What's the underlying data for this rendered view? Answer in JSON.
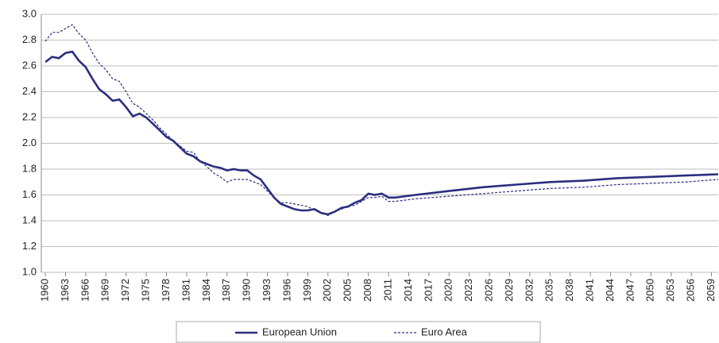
{
  "chart_data": {
    "type": "line",
    "x": [
      1960,
      1961,
      1962,
      1963,
      1964,
      1965,
      1966,
      1967,
      1968,
      1969,
      1970,
      1971,
      1972,
      1973,
      1974,
      1975,
      1976,
      1977,
      1978,
      1979,
      1980,
      1981,
      1982,
      1983,
      1984,
      1985,
      1986,
      1987,
      1988,
      1989,
      1990,
      1991,
      1992,
      1993,
      1994,
      1995,
      1996,
      1997,
      1998,
      1999,
      2000,
      2001,
      2002,
      2003,
      2004,
      2005,
      2006,
      2007,
      2008,
      2009,
      2010,
      2011,
      2012,
      2015,
      2020,
      2025,
      2030,
      2035,
      2040,
      2045,
      2050,
      2055,
      2060
    ],
    "series": [
      {
        "name": "European Union",
        "color": "#2b2e7f",
        "style": "solid",
        "values": [
          2.63,
          2.67,
          2.66,
          2.7,
          2.71,
          2.64,
          2.59,
          2.5,
          2.42,
          2.38,
          2.33,
          2.34,
          2.28,
          2.21,
          2.23,
          2.2,
          2.15,
          2.1,
          2.05,
          2.02,
          1.97,
          1.92,
          1.9,
          1.86,
          1.84,
          1.82,
          1.81,
          1.79,
          1.8,
          1.79,
          1.79,
          1.75,
          1.72,
          1.65,
          1.58,
          1.53,
          1.51,
          1.49,
          1.48,
          1.48,
          1.49,
          1.46,
          1.45,
          1.47,
          1.5,
          1.51,
          1.54,
          1.56,
          1.61,
          1.6,
          1.61,
          1.58,
          1.58,
          1.6,
          1.63,
          1.66,
          1.68,
          1.7,
          1.71,
          1.73,
          1.74,
          1.75,
          1.76
        ]
      },
      {
        "name": "Euro Area",
        "color": "#2b2e7f",
        "style": "dashed",
        "values": [
          2.79,
          2.86,
          2.86,
          2.89,
          2.92,
          2.85,
          2.8,
          2.7,
          2.62,
          2.57,
          2.5,
          2.48,
          2.4,
          2.31,
          2.28,
          2.23,
          2.18,
          2.12,
          2.07,
          2.02,
          1.98,
          1.94,
          1.93,
          1.86,
          1.82,
          1.77,
          1.74,
          1.7,
          1.72,
          1.72,
          1.72,
          1.7,
          1.68,
          1.63,
          1.58,
          1.54,
          1.54,
          1.53,
          1.52,
          1.51,
          1.48,
          1.46,
          1.44,
          1.47,
          1.49,
          1.51,
          1.52,
          1.55,
          1.58,
          1.58,
          1.59,
          1.55,
          1.55,
          1.57,
          1.59,
          1.61,
          1.63,
          1.65,
          1.66,
          1.68,
          1.69,
          1.7,
          1.72
        ]
      }
    ],
    "xlim": [
      1959.4,
      2060
    ],
    "xticks": [
      1960,
      1963,
      1966,
      1969,
      1972,
      1975,
      1978,
      1981,
      1984,
      1987,
      1990,
      1993,
      1996,
      1999,
      2002,
      2005,
      2008,
      2011,
      2014,
      2017,
      2020,
      2023,
      2026,
      2029,
      2032,
      2035,
      2038,
      2041,
      2044,
      2047,
      2050,
      2053,
      2056,
      2059
    ],
    "ylim": [
      1.0,
      3.0
    ],
    "yticks": [
      {
        "value": 1.0,
        "label": "1.0"
      },
      1.2,
      1.4,
      1.6,
      1.8,
      {
        "value": 2.0,
        "label": "2.0"
      },
      2.2,
      2.4,
      2.6,
      2.8,
      {
        "value": 3.0,
        "label": "3.0"
      }
    ],
    "grid": true,
    "legend": "bottom"
  }
}
